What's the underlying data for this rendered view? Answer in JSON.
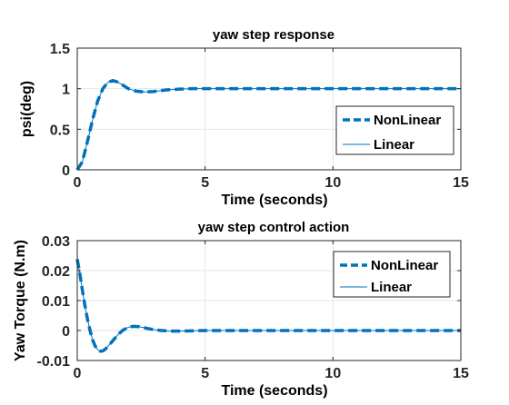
{
  "chart_data": [
    {
      "type": "line",
      "title": "yaw step response",
      "xlabel": "Time (seconds)",
      "ylabel": "psi(deg)",
      "xlim": [
        0,
        15
      ],
      "ylim": [
        0,
        1.5
      ],
      "xticks": [
        0,
        5,
        10,
        15
      ],
      "yticks": [
        0,
        0.5,
        1,
        1.5
      ],
      "xtick_labels": [
        "0",
        "5",
        "10",
        "15"
      ],
      "ytick_labels": [
        "0",
        "0.5",
        "1",
        "1.5"
      ],
      "grid": true,
      "legend_position": "right",
      "series": [
        {
          "name": "NonLinear",
          "color": "#0072BD",
          "style": "dashed-thick",
          "x": [
            0,
            0.2,
            0.4,
            0.6,
            0.8,
            1.0,
            1.2,
            1.4,
            1.6,
            1.8,
            2.0,
            2.3,
            2.6,
            3.0,
            3.5,
            4.0,
            4.5,
            5.0,
            6.0,
            8.0,
            10.0,
            12.0,
            15.0
          ],
          "y": [
            0,
            0.1,
            0.35,
            0.62,
            0.85,
            1.0,
            1.08,
            1.1,
            1.08,
            1.04,
            1.0,
            0.97,
            0.96,
            0.965,
            0.985,
            0.995,
            1.0,
            1.0,
            1.0,
            1.0,
            1.0,
            1.0,
            1.0
          ]
        },
        {
          "name": "Linear",
          "color": "#0072BD",
          "style": "solid-thin",
          "x": [
            0,
            0.2,
            0.4,
            0.6,
            0.8,
            1.0,
            1.2,
            1.4,
            1.6,
            1.8,
            2.0,
            2.3,
            2.6,
            3.0,
            3.5,
            4.0,
            4.5,
            5.0,
            6.0,
            8.0,
            10.0,
            12.0,
            15.0
          ],
          "y": [
            0,
            0.1,
            0.35,
            0.62,
            0.85,
            1.0,
            1.08,
            1.1,
            1.08,
            1.04,
            1.0,
            0.97,
            0.96,
            0.965,
            0.985,
            0.995,
            1.0,
            1.0,
            1.0,
            1.0,
            1.0,
            1.0,
            1.0
          ]
        }
      ]
    },
    {
      "type": "line",
      "title": "yaw step control action",
      "xlabel": "Time (seconds)",
      "ylabel": "Yaw Torque (N.m)",
      "xlim": [
        0,
        15
      ],
      "ylim": [
        -0.01,
        0.03
      ],
      "xticks": [
        0,
        5,
        10,
        15
      ],
      "yticks": [
        -0.01,
        0,
        0.01,
        0.02,
        0.03
      ],
      "xtick_labels": [
        "0",
        "5",
        "10",
        "15"
      ],
      "ytick_labels": [
        "-0.01",
        "0",
        "0.01",
        "0.02",
        "0.03"
      ],
      "grid": true,
      "legend_position": "top-right",
      "series": [
        {
          "name": "NonLinear",
          "color": "#0072BD",
          "style": "dashed-thick",
          "x": [
            0,
            0.1,
            0.2,
            0.3,
            0.4,
            0.5,
            0.6,
            0.7,
            0.8,
            0.9,
            1.0,
            1.1,
            1.2,
            1.4,
            1.6,
            1.8,
            2.0,
            2.2,
            2.4,
            2.6,
            2.8,
            3.0,
            3.3,
            3.6,
            4.0,
            4.5,
            5.0,
            6.0,
            8.0,
            10.0,
            12.0,
            15.0
          ],
          "y": [
            0.0238,
            0.019,
            0.0135,
            0.0083,
            0.0038,
            0.0,
            -0.0031,
            -0.0052,
            -0.0064,
            -0.0069,
            -0.0068,
            -0.0062,
            -0.0053,
            -0.0033,
            -0.0013,
            0.0002,
            0.0011,
            0.0014,
            0.0013,
            0.001,
            0.0006,
            0.0003,
            0.0,
            -0.0002,
            -0.0002,
            -0.0001,
            0.0,
            0.0,
            0.0,
            0.0,
            0.0,
            0.0
          ]
        },
        {
          "name": "Linear",
          "color": "#0072BD",
          "style": "solid-thin",
          "x": [
            0,
            0.1,
            0.2,
            0.3,
            0.4,
            0.5,
            0.6,
            0.7,
            0.8,
            0.9,
            1.0,
            1.1,
            1.2,
            1.4,
            1.6,
            1.8,
            2.0,
            2.2,
            2.4,
            2.6,
            2.8,
            3.0,
            3.3,
            3.6,
            4.0,
            4.5,
            5.0,
            6.0,
            8.0,
            10.0,
            12.0,
            15.0
          ],
          "y": [
            0.0238,
            0.019,
            0.0135,
            0.0083,
            0.0038,
            0.0,
            -0.0031,
            -0.0052,
            -0.0064,
            -0.0069,
            -0.0068,
            -0.0062,
            -0.0053,
            -0.0033,
            -0.0013,
            0.0002,
            0.0011,
            0.0014,
            0.0013,
            0.001,
            0.0006,
            0.0003,
            0.0,
            -0.0002,
            -0.0002,
            -0.0001,
            0.0,
            0.0,
            0.0,
            0.0,
            0.0,
            0.0
          ]
        }
      ]
    }
  ]
}
